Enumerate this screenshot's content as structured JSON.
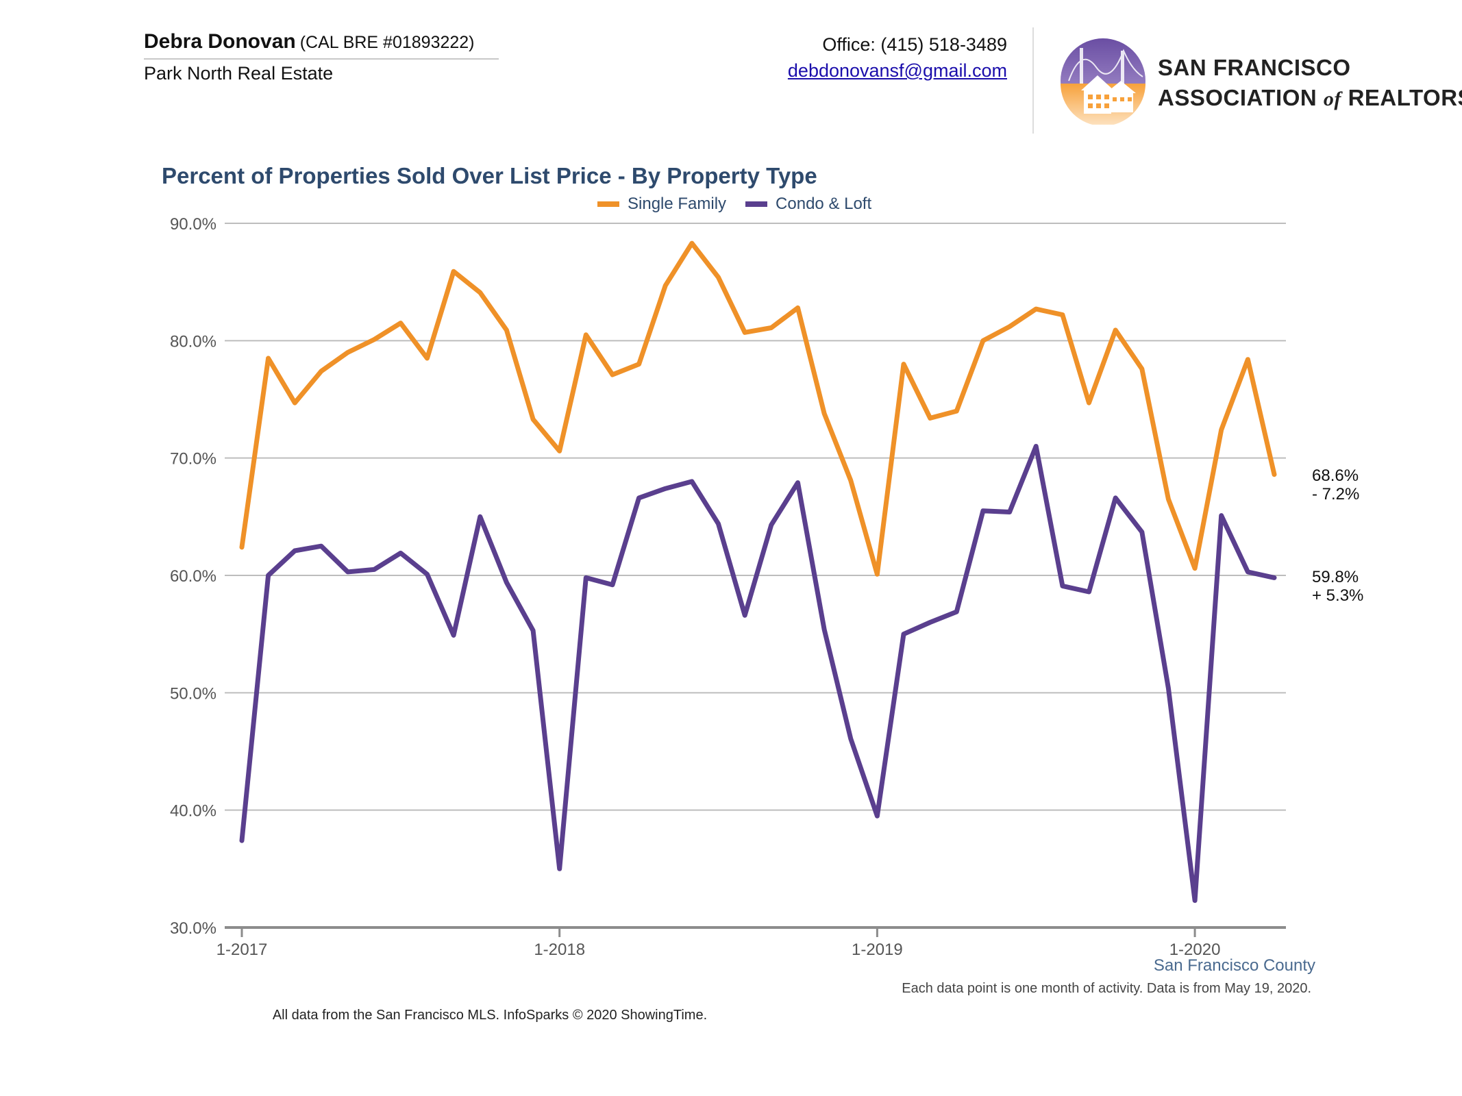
{
  "header": {
    "agent_name": "Debra Donovan",
    "agent_license": "(CAL BRE #01893222)",
    "agent_company": "Park North Real Estate",
    "office_phone": "Office: (415) 518-3489",
    "email": "debdonovansf@gmail.com",
    "logo_line1": "San Francisco",
    "logo_line2_a": "Association",
    "logo_line2_of": "of",
    "logo_line2_b": "Realtors",
    "logo_reg": "®"
  },
  "footer": {
    "region": "San Francisco County",
    "note": "Each data point is one month of activity. Data is from May 19, 2020.",
    "source": "All data from the San Francisco MLS. InfoSparks © 2020 ShowingTime."
  },
  "colors": {
    "single_family": "#ef9128",
    "condo_loft": "#5a3f8e",
    "grid": "#bdbdbd",
    "axis": "#8c8c8c",
    "title": "#2e4a6d"
  },
  "chart_data": {
    "type": "line",
    "title": "Percent of Properties Sold Over List Price - By Property Type",
    "xlabel": "",
    "ylabel": "",
    "ylim": [
      30,
      90
    ],
    "y_ticks": [
      "30.0%",
      "40.0%",
      "50.0%",
      "60.0%",
      "70.0%",
      "80.0%",
      "90.0%"
    ],
    "y_tick_values": [
      30,
      40,
      50,
      60,
      70,
      80,
      90
    ],
    "x_ticks": [
      "1-2017",
      "1-2018",
      "1-2019",
      "1-2020"
    ],
    "grid": true,
    "legend_position": "top-center",
    "x": [
      "2017-01",
      "2017-02",
      "2017-03",
      "2017-04",
      "2017-05",
      "2017-06",
      "2017-07",
      "2017-08",
      "2017-09",
      "2017-10",
      "2017-11",
      "2017-12",
      "2018-01",
      "2018-02",
      "2018-03",
      "2018-04",
      "2018-05",
      "2018-06",
      "2018-07",
      "2018-08",
      "2018-09",
      "2018-10",
      "2018-11",
      "2018-12",
      "2019-01",
      "2019-02",
      "2019-03",
      "2019-04",
      "2019-05",
      "2019-06",
      "2019-07",
      "2019-08",
      "2019-09",
      "2019-10",
      "2019-11",
      "2019-12",
      "2020-01",
      "2020-02",
      "2020-03",
      "2020-04"
    ],
    "series": [
      {
        "name": "Single Family",
        "values": [
          62.4,
          78.5,
          74.7,
          77.4,
          79.0,
          80.1,
          81.5,
          78.5,
          85.9,
          84.1,
          80.9,
          73.3,
          70.6,
          80.5,
          77.1,
          78.0,
          84.7,
          88.3,
          85.4,
          80.7,
          81.1,
          82.8,
          73.8,
          68.1,
          60.1,
          78.0,
          73.4,
          74.0,
          80.0,
          81.2,
          82.7,
          82.2,
          74.7,
          80.9,
          77.6,
          66.5,
          60.6,
          72.4,
          78.4,
          68.6
        ],
        "end_value": "68.6%",
        "end_change": "- 7.2%"
      },
      {
        "name": "Condo & Loft",
        "values": [
          37.4,
          60.0,
          62.1,
          62.5,
          60.3,
          60.5,
          61.9,
          60.1,
          54.9,
          65.0,
          59.4,
          55.3,
          35.0,
          59.8,
          59.2,
          66.6,
          67.4,
          68.0,
          64.4,
          56.6,
          64.3,
          67.9,
          55.4,
          46.1,
          39.5,
          55.0,
          56.0,
          56.9,
          65.5,
          65.4,
          71.0,
          59.1,
          58.6,
          66.6,
          63.7,
          50.4,
          32.3,
          65.1,
          60.3,
          59.8
        ],
        "end_value": "59.8%",
        "end_change": "+ 5.3%"
      }
    ]
  }
}
